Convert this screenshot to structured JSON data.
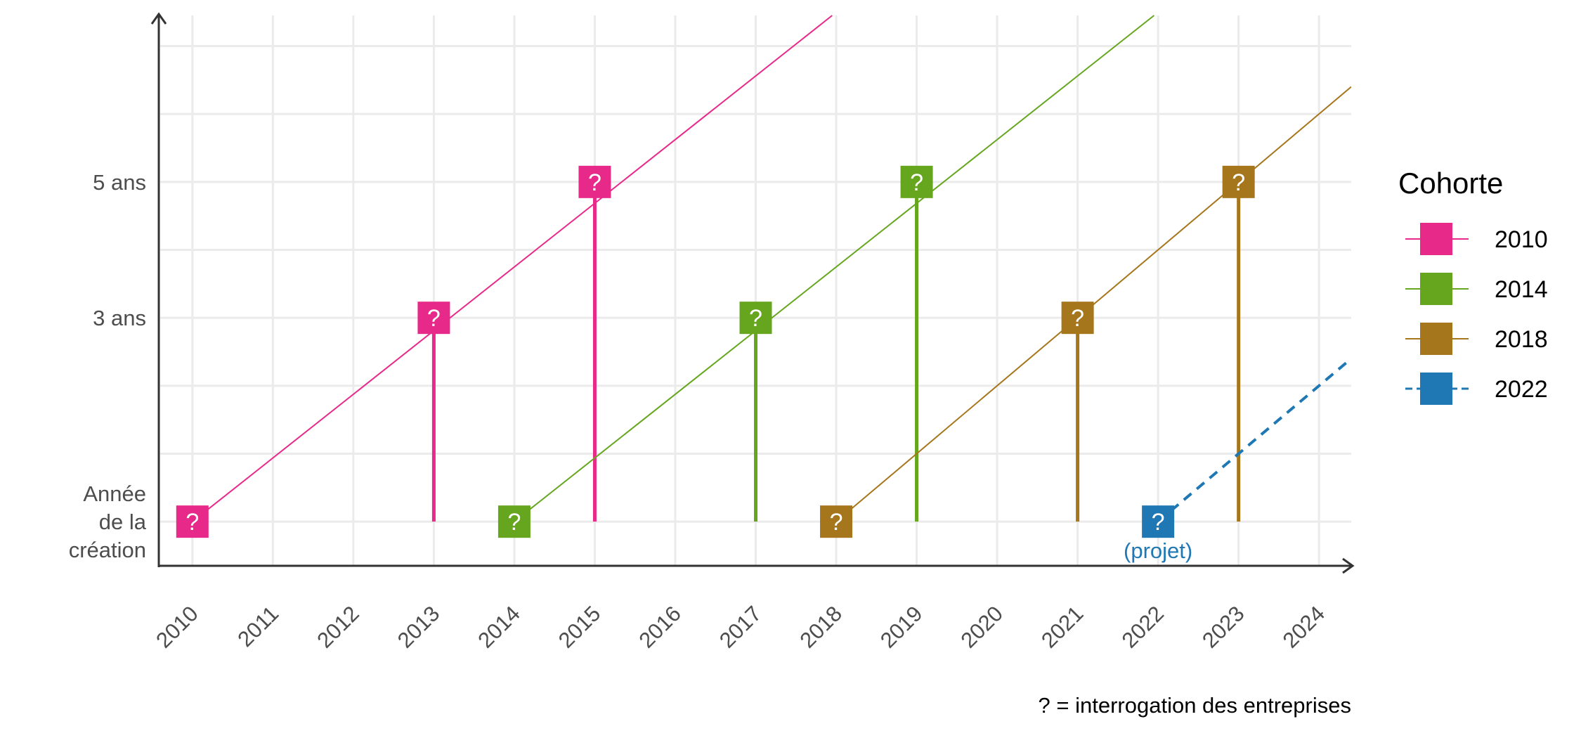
{
  "chart_data": {
    "type": "line",
    "x_categories": [
      "2010",
      "2011",
      "2012",
      "2013",
      "2014",
      "2015",
      "2016",
      "2017",
      "2018",
      "2019",
      "2020",
      "2021",
      "2022",
      "2023",
      "2024"
    ],
    "xlim": [
      2009.6,
      2024.4
    ],
    "y_levels": [
      {
        "value": 0,
        "label": "Année de la création",
        "label_lines": [
          "Année",
          "de la",
          "création"
        ]
      },
      {
        "value": 3,
        "label": "3 ans"
      },
      {
        "value": 5,
        "label": "5 ans"
      }
    ],
    "ylim": [
      -0.65,
      7.45
    ],
    "grid": true,
    "legend": {
      "title": "Cohorte",
      "position": "right"
    },
    "marker_symbol": "?",
    "caption": "? = interrogation des entreprises",
    "series": [
      {
        "name": "2010",
        "color": "#E7298A",
        "dashed": false,
        "line": [
          [
            2010,
            0
          ],
          [
            2017.95,
            7.45
          ]
        ],
        "survey_points": [
          [
            2010,
            0
          ],
          [
            2013,
            3
          ],
          [
            2015,
            5
          ]
        ]
      },
      {
        "name": "2014",
        "color": "#66A61E",
        "dashed": false,
        "line": [
          [
            2014,
            0
          ],
          [
            2021.95,
            7.45
          ]
        ],
        "survey_points": [
          [
            2014,
            0
          ],
          [
            2017,
            3
          ],
          [
            2019,
            5
          ]
        ]
      },
      {
        "name": "2018",
        "color": "#A6761D",
        "dashed": false,
        "line": [
          [
            2018,
            0
          ],
          [
            2024.4,
            6.4
          ]
        ],
        "survey_points": [
          [
            2018,
            0
          ],
          [
            2021,
            3
          ],
          [
            2023,
            5
          ]
        ]
      },
      {
        "name": "2022",
        "color": "#1F78B4",
        "dashed": true,
        "line": [
          [
            2022,
            0
          ],
          [
            2024.4,
            2.4
          ]
        ],
        "survey_points": [
          [
            2022,
            0
          ]
        ],
        "note": "(projet)"
      }
    ]
  }
}
